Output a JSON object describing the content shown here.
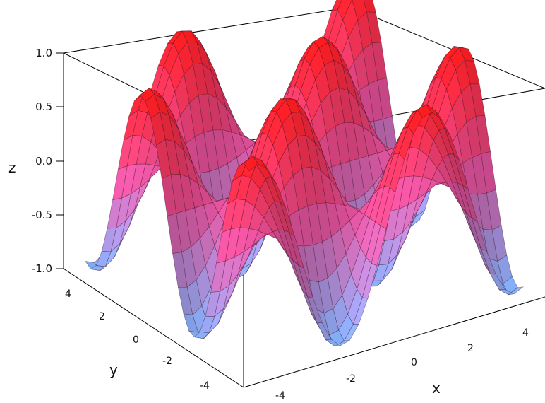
{
  "chart_data": {
    "type": "surface3d",
    "function_samples": {
      "x": [
        -5,
        -4,
        -3,
        -2,
        -1,
        0,
        1,
        2,
        3,
        4,
        5
      ],
      "y": [
        -5,
        -4,
        -3,
        -2,
        -1,
        0,
        1,
        2,
        3,
        4,
        5
      ],
      "z_range_observed": [
        -1.0,
        1.0
      ]
    },
    "xlim": [
      -5.5,
      5.5
    ],
    "ylim": [
      -5.5,
      5.5
    ],
    "zlim": [
      -1.0,
      1.0
    ],
    "grid": false,
    "colors": {
      "high": "#ff1a1a",
      "mid": "#e0509a",
      "low": "#7fb5ff",
      "mesh": "#3a1020"
    },
    "axes": {
      "x": {
        "label": "x",
        "ticks": [
          "-4",
          "-2",
          "0",
          "2",
          "4"
        ],
        "tick_values": [
          -4,
          -2,
          0,
          2,
          4
        ]
      },
      "y": {
        "label": "y",
        "ticks": [
          "-4",
          "-2",
          "0",
          "2",
          "4"
        ],
        "tick_values": [
          -4,
          -2,
          0,
          2,
          4
        ]
      },
      "z": {
        "label": "z",
        "ticks": [
          "-1.0",
          "-0.5",
          "0.0",
          "0.5",
          "1.0"
        ],
        "tick_values": [
          -1.0,
          -0.5,
          0.0,
          0.5,
          1.0
        ]
      }
    }
  }
}
